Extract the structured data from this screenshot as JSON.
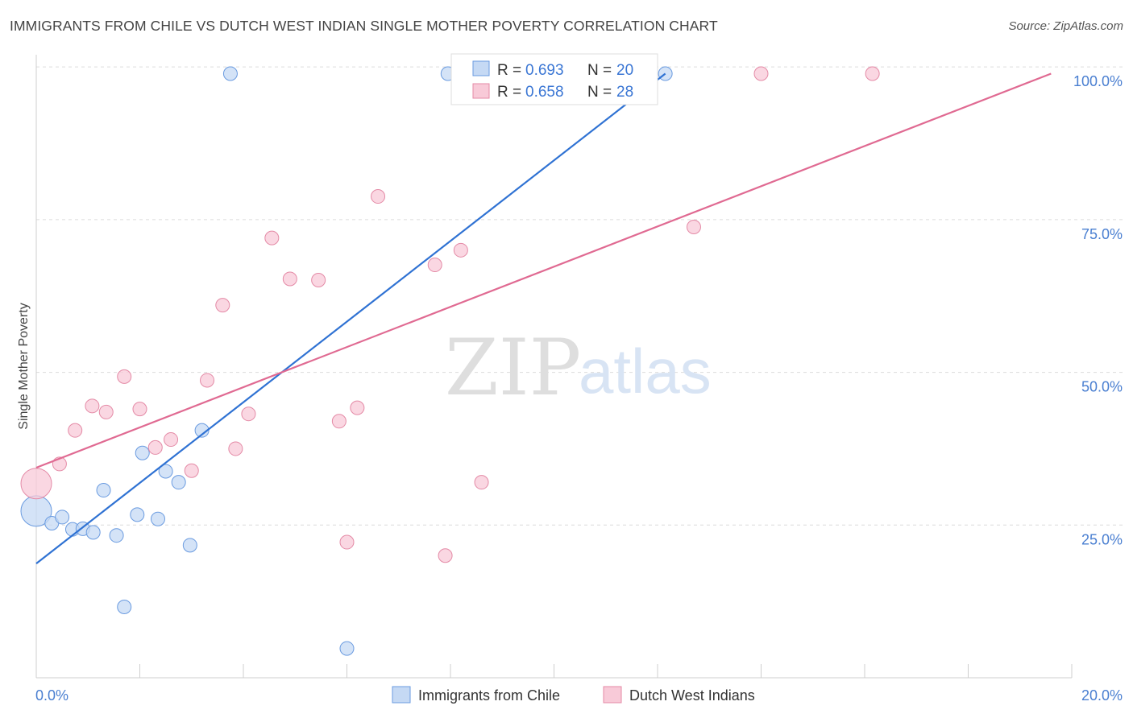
{
  "header": {
    "title": "IMMIGRANTS FROM CHILE VS DUTCH WEST INDIAN SINGLE MOTHER POVERTY CORRELATION CHART",
    "source": "Source: ZipAtlas.com"
  },
  "watermark": {
    "zip": "ZIP",
    "atlas": "atlas"
  },
  "legend": {
    "r_label": "R =",
    "n_label": "N =",
    "entries": [
      {
        "r": "0.693",
        "n": "20"
      },
      {
        "r": "0.658",
        "n": "28"
      }
    ]
  },
  "chart_data": {
    "type": "scatter",
    "title": "IMMIGRANTS FROM CHILE VS DUTCH WEST INDIAN SINGLE MOTHER POVERTY CORRELATION CHART",
    "xlabel": "",
    "ylabel": "Single Mother Poverty",
    "xlim": [
      0,
      20
    ],
    "ylim": [
      0,
      102
    ],
    "x_ticks": [
      "0.0%",
      "20.0%"
    ],
    "y_ticks": [
      {
        "value": 25,
        "label": "25.0%"
      },
      {
        "value": 50,
        "label": "50.0%"
      },
      {
        "value": 75,
        "label": "75.0%"
      },
      {
        "value": 100,
        "label": "100.0%"
      }
    ],
    "grid": true,
    "legend_position": "bottom-center",
    "series": [
      {
        "name": "Immigrants from Chile",
        "color": "#6a9be0",
        "fill": "#c5d9f4",
        "trend": {
          "x": [
            0,
            12.15
          ],
          "y": [
            18.7,
            98.9
          ]
        },
        "points": [
          {
            "x": 0.0,
            "y": 27.3,
            "big": true
          },
          {
            "x": 0.3,
            "y": 25.3
          },
          {
            "x": 0.5,
            "y": 26.3
          },
          {
            "x": 0.7,
            "y": 24.3
          },
          {
            "x": 0.9,
            "y": 24.4
          },
          {
            "x": 1.1,
            "y": 23.8
          },
          {
            "x": 1.3,
            "y": 30.7
          },
          {
            "x": 1.55,
            "y": 23.3
          },
          {
            "x": 1.7,
            "y": 11.6
          },
          {
            "x": 1.95,
            "y": 26.7
          },
          {
            "x": 2.05,
            "y": 36.8
          },
          {
            "x": 2.35,
            "y": 26.0
          },
          {
            "x": 2.5,
            "y": 33.8
          },
          {
            "x": 2.75,
            "y": 32.0
          },
          {
            "x": 2.97,
            "y": 21.7
          },
          {
            "x": 3.2,
            "y": 40.5
          },
          {
            "x": 3.75,
            "y": 98.9
          },
          {
            "x": 6.0,
            "y": 4.8
          },
          {
            "x": 7.95,
            "y": 98.9
          },
          {
            "x": 12.15,
            "y": 98.9
          }
        ]
      },
      {
        "name": "Dutch West Indians",
        "color": "#e48aa6",
        "fill": "#f8cad8",
        "trend": {
          "x": [
            0,
            19.6
          ],
          "y": [
            34.4,
            98.9
          ]
        },
        "points": [
          {
            "x": 0.0,
            "y": 31.8,
            "big": true
          },
          {
            "x": 0.45,
            "y": 35.0
          },
          {
            "x": 0.75,
            "y": 40.5
          },
          {
            "x": 1.08,
            "y": 44.5
          },
          {
            "x": 1.35,
            "y": 43.5
          },
          {
            "x": 1.7,
            "y": 49.3
          },
          {
            "x": 2.0,
            "y": 44.0
          },
          {
            "x": 2.3,
            "y": 37.7
          },
          {
            "x": 2.6,
            "y": 39.0
          },
          {
            "x": 3.0,
            "y": 33.9
          },
          {
            "x": 3.3,
            "y": 48.7
          },
          {
            "x": 3.6,
            "y": 61.0
          },
          {
            "x": 3.85,
            "y": 37.5
          },
          {
            "x": 4.1,
            "y": 43.2
          },
          {
            "x": 4.55,
            "y": 72.0
          },
          {
            "x": 4.9,
            "y": 65.3
          },
          {
            "x": 5.45,
            "y": 65.1
          },
          {
            "x": 5.85,
            "y": 42.0
          },
          {
            "x": 6.0,
            "y": 22.2
          },
          {
            "x": 6.2,
            "y": 44.2
          },
          {
            "x": 6.6,
            "y": 78.8
          },
          {
            "x": 7.7,
            "y": 67.6
          },
          {
            "x": 7.9,
            "y": 20.0
          },
          {
            "x": 8.2,
            "y": 70.0
          },
          {
            "x": 8.6,
            "y": 32.0
          },
          {
            "x": 12.7,
            "y": 73.8
          },
          {
            "x": 14.0,
            "y": 98.9
          },
          {
            "x": 16.15,
            "y": 98.9
          }
        ]
      }
    ]
  }
}
